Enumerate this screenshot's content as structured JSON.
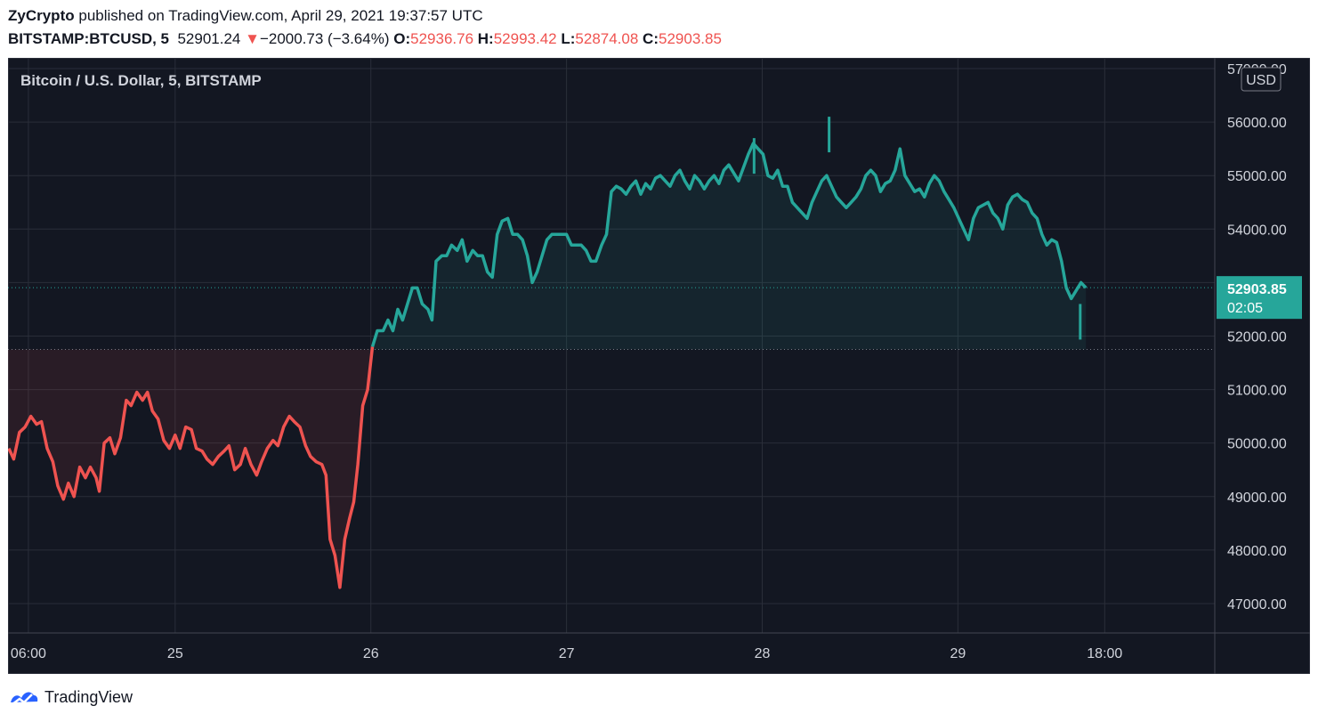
{
  "header": {
    "author": "ZyCrypto",
    "published_text": "published on TradingView.com, April 29, 2021 19:37:57 UTC",
    "symbol": "BITSTAMP:BTCUSD, 5",
    "last": "52901.24",
    "change": "−2000.73 (−3.64%)",
    "open_label": "O:",
    "open": "52936.76",
    "high_label": "H:",
    "high": "52993.42",
    "low_label": "L:",
    "low": "52874.08",
    "close_label": "C:",
    "close": "52903.85"
  },
  "footer": {
    "brand": "TradingView",
    "logo_icon": "tradingview-logo-icon"
  },
  "colors": {
    "background": "#131722",
    "up": "#26a69a",
    "down": "#ef5350",
    "grid": "#2a2e39",
    "axis_text": "#d1d4dc",
    "axis_bg": "#131722"
  },
  "chart_data": {
    "type": "area",
    "title": "Bitcoin / U.S. Dollar, 5, BITSTAMP",
    "currency_label": "USD",
    "last_price_label": "52903.85",
    "countdown_label": "02:05",
    "reference_price": 51750,
    "xlim": [
      3.5,
      151.5
    ],
    "ylim": [
      46450,
      57200
    ],
    "x_unit": "hours since Apr 24 00:00 UTC",
    "x_ticks": [
      {
        "x": 6,
        "label": "06:00"
      },
      {
        "x": 24,
        "label": "25"
      },
      {
        "x": 48,
        "label": "26"
      },
      {
        "x": 72,
        "label": "27"
      },
      {
        "x": 96,
        "label": "28"
      },
      {
        "x": 120,
        "label": "29"
      },
      {
        "x": 138,
        "label": "18:00"
      }
    ],
    "y_ticks": [
      47000,
      48000,
      49000,
      50000,
      51000,
      52000,
      53000,
      54000,
      55000,
      56000,
      57000
    ],
    "series": [
      {
        "values": [
          [
            3.6,
            49900
          ],
          [
            4.2,
            49700
          ],
          [
            4.9,
            50200
          ],
          [
            5.6,
            50300
          ],
          [
            6.3,
            50500
          ],
          [
            7,
            50350
          ],
          [
            7.6,
            50400
          ],
          [
            8.3,
            49900
          ],
          [
            9,
            49650
          ],
          [
            9.6,
            49200
          ],
          [
            10.3,
            48950
          ],
          [
            10.9,
            49250
          ],
          [
            11.6,
            49000
          ],
          [
            12.3,
            49550
          ],
          [
            13,
            49350
          ],
          [
            13.6,
            49550
          ],
          [
            14.3,
            49350
          ],
          [
            14.7,
            49100
          ],
          [
            15.3,
            50000
          ],
          [
            16,
            50100
          ],
          [
            16.6,
            49800
          ],
          [
            17.3,
            50100
          ],
          [
            18,
            50800
          ],
          [
            18.6,
            50700
          ],
          [
            19.3,
            50950
          ],
          [
            20,
            50800
          ],
          [
            20.6,
            50950
          ],
          [
            21.2,
            50600
          ],
          [
            21.9,
            50450
          ],
          [
            22.6,
            50050
          ],
          [
            23.3,
            49900
          ],
          [
            24,
            50150
          ],
          [
            24.6,
            49900
          ],
          [
            25.3,
            50300
          ],
          [
            26,
            50250
          ],
          [
            26.6,
            49900
          ],
          [
            27.3,
            49850
          ],
          [
            27.9,
            49700
          ],
          [
            28.6,
            49600
          ],
          [
            29.3,
            49750
          ],
          [
            30,
            49850
          ],
          [
            30.6,
            49950
          ],
          [
            31.3,
            49500
          ],
          [
            32,
            49600
          ],
          [
            32.6,
            49900
          ],
          [
            33.3,
            49600
          ],
          [
            34,
            49400
          ],
          [
            34.6,
            49650
          ],
          [
            35.3,
            49900
          ],
          [
            36,
            50050
          ],
          [
            36.6,
            49950
          ],
          [
            37.3,
            50300
          ],
          [
            38,
            50500
          ],
          [
            38.6,
            50400
          ],
          [
            39.3,
            50300
          ],
          [
            40,
            49950
          ],
          [
            40.6,
            49750
          ],
          [
            41.3,
            49650
          ],
          [
            42,
            49600
          ],
          [
            42.5,
            49400
          ],
          [
            43,
            48200
          ],
          [
            43.6,
            47900
          ],
          [
            44.2,
            47300
          ],
          [
            44.8,
            48200
          ],
          [
            45.4,
            48600
          ],
          [
            45.9,
            48900
          ],
          [
            46.4,
            49600
          ],
          [
            47,
            50700
          ],
          [
            47.6,
            51000
          ],
          [
            48.2,
            51800
          ],
          [
            48.8,
            52100
          ],
          [
            49.5,
            52100
          ],
          [
            50.1,
            52300
          ],
          [
            50.7,
            52100
          ],
          [
            51.3,
            52500
          ],
          [
            51.9,
            52300
          ],
          [
            52.5,
            52600
          ],
          [
            53.1,
            52900
          ],
          [
            53.7,
            52900
          ],
          [
            54.3,
            52600
          ],
          [
            55,
            52500
          ],
          [
            55.5,
            52300
          ],
          [
            56,
            53400
          ],
          [
            56.7,
            53500
          ],
          [
            57.3,
            53500
          ],
          [
            57.9,
            53700
          ],
          [
            58.6,
            53600
          ],
          [
            59.2,
            53800
          ],
          [
            59.8,
            53400
          ],
          [
            60.5,
            53600
          ],
          [
            61.1,
            53500
          ],
          [
            61.7,
            53500
          ],
          [
            62.3,
            53200
          ],
          [
            62.9,
            53100
          ],
          [
            63.5,
            53900
          ],
          [
            64.1,
            54150
          ],
          [
            64.8,
            54200
          ],
          [
            65.4,
            53900
          ],
          [
            66,
            53900
          ],
          [
            66.6,
            53800
          ],
          [
            67.2,
            53500
          ],
          [
            67.8,
            53000
          ],
          [
            68.4,
            53200
          ],
          [
            69,
            53500
          ],
          [
            69.6,
            53800
          ],
          [
            70.2,
            53900
          ],
          [
            70.8,
            53900
          ],
          [
            71.4,
            53900
          ],
          [
            72,
            53900
          ],
          [
            72.6,
            53700
          ],
          [
            73.2,
            53700
          ],
          [
            73.8,
            53700
          ],
          [
            74.4,
            53600
          ],
          [
            75,
            53400
          ],
          [
            75.6,
            53400
          ],
          [
            76.3,
            53700
          ],
          [
            76.9,
            53900
          ],
          [
            77.5,
            54700
          ],
          [
            78.1,
            54800
          ],
          [
            78.7,
            54750
          ],
          [
            79.3,
            54650
          ],
          [
            79.9,
            54800
          ],
          [
            80.5,
            54900
          ],
          [
            81.1,
            54650
          ],
          [
            81.7,
            54850
          ],
          [
            82.3,
            54750
          ],
          [
            82.9,
            54950
          ],
          [
            83.5,
            55000
          ],
          [
            84.1,
            54900
          ],
          [
            84.7,
            54800
          ],
          [
            85.3,
            55000
          ],
          [
            85.9,
            55100
          ],
          [
            86.5,
            54900
          ],
          [
            87.1,
            54750
          ],
          [
            87.7,
            55000
          ],
          [
            88.3,
            54900
          ],
          [
            88.9,
            54750
          ],
          [
            89.5,
            54900
          ],
          [
            90.1,
            55000
          ],
          [
            90.7,
            54850
          ],
          [
            91.3,
            55100
          ],
          [
            91.9,
            55200
          ],
          [
            92.5,
            55050
          ],
          [
            93.1,
            54900
          ],
          [
            93.7,
            55150
          ],
          [
            94.3,
            55400
          ],
          [
            94.9,
            55600
          ],
          [
            95.5,
            55500
          ],
          [
            96.1,
            55400
          ],
          [
            96.7,
            55000
          ],
          [
            97.3,
            54950
          ],
          [
            97.9,
            55100
          ],
          [
            98.5,
            54800
          ],
          [
            99.1,
            54800
          ],
          [
            99.7,
            54500
          ],
          [
            100.3,
            54400
          ],
          [
            100.9,
            54300
          ],
          [
            101.5,
            54200
          ],
          [
            102.1,
            54500
          ],
          [
            102.7,
            54700
          ],
          [
            103.3,
            54900
          ],
          [
            103.9,
            55000
          ],
          [
            104.5,
            54800
          ],
          [
            105.1,
            54600
          ],
          [
            105.7,
            54500
          ],
          [
            106.3,
            54400
          ],
          [
            106.9,
            54500
          ],
          [
            107.5,
            54600
          ],
          [
            108.1,
            54750
          ],
          [
            108.7,
            55000
          ],
          [
            109.3,
            55100
          ],
          [
            109.9,
            55000
          ],
          [
            110.5,
            54700
          ],
          [
            111.1,
            54850
          ],
          [
            111.7,
            54900
          ],
          [
            112.3,
            55100
          ],
          [
            112.9,
            55500
          ],
          [
            113.5,
            55000
          ],
          [
            114.1,
            54850
          ],
          [
            114.7,
            54700
          ],
          [
            115.3,
            54750
          ],
          [
            115.9,
            54600
          ],
          [
            116.5,
            54850
          ],
          [
            117.1,
            55000
          ],
          [
            117.7,
            54900
          ],
          [
            118.3,
            54700
          ],
          [
            118.9,
            54550
          ],
          [
            119.5,
            54400
          ],
          [
            120.1,
            54200
          ],
          [
            120.7,
            54000
          ],
          [
            121.3,
            53800
          ],
          [
            121.9,
            54200
          ],
          [
            122.5,
            54400
          ],
          [
            123.1,
            54450
          ],
          [
            123.7,
            54500
          ],
          [
            124.3,
            54300
          ],
          [
            124.9,
            54200
          ],
          [
            125.5,
            54000
          ],
          [
            126.1,
            54450
          ],
          [
            126.7,
            54600
          ],
          [
            127.3,
            54650
          ],
          [
            127.9,
            54550
          ],
          [
            128.5,
            54500
          ],
          [
            129.1,
            54300
          ],
          [
            129.7,
            54200
          ],
          [
            130.3,
            53900
          ],
          [
            130.9,
            53700
          ],
          [
            131.5,
            53800
          ],
          [
            132.1,
            53750
          ],
          [
            132.7,
            53400
          ],
          [
            133.3,
            52900
          ],
          [
            133.9,
            52700
          ],
          [
            134.5,
            52850
          ],
          [
            135.1,
            53000
          ],
          [
            135.7,
            52904
          ]
        ],
        "spikes": [
          [
            104.2,
            56100
          ],
          [
            95,
            55700
          ],
          [
            135,
            52600
          ]
        ]
      }
    ]
  }
}
